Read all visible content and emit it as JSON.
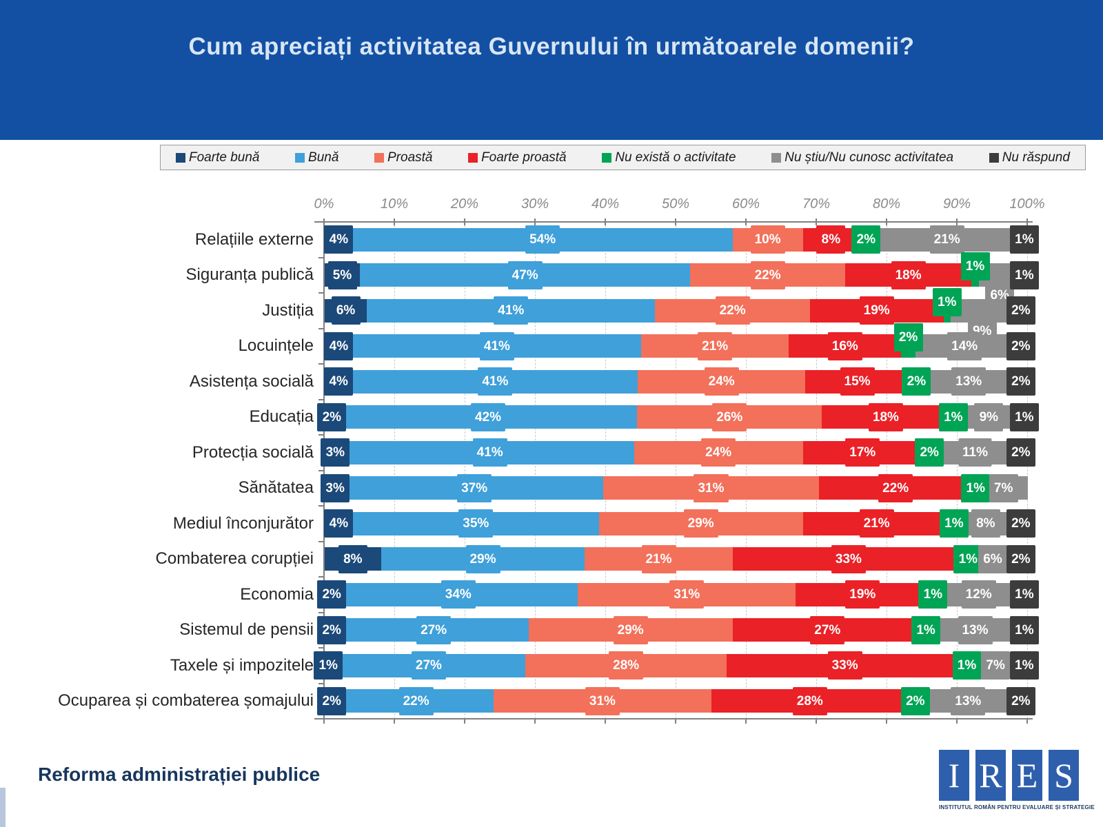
{
  "header": {
    "title": "Cum apreciați activitatea Guvernului în următoarele domenii?"
  },
  "footer": {
    "note": "Reforma administrației publice",
    "logo": {
      "letters": [
        "I",
        "R",
        "E",
        "S"
      ],
      "caption": "INSTITUTUL ROMÂN PENTRU EVALUARE ȘI STRATEGIE"
    }
  },
  "colors": {
    "header_blue": "#1350A4",
    "title_text": "#D8E6F4",
    "legend_background": "#F1F1F1",
    "axis_gray": "#7F7F7F",
    "footer_navy": "#17365D",
    "logo_blue": "#2E5FAC"
  },
  "chart_data": {
    "type": "bar",
    "variant": "stacked-horizontal-100%",
    "title": "Cum apreciați activitatea Guvernului în următoarele domenii?",
    "legend_position": "top",
    "grid": "vertical-dashed",
    "x_axis": {
      "min": 0,
      "max": 100,
      "ticks": [
        "0%",
        "10%",
        "20%",
        "30%",
        "40%",
        "50%",
        "60%",
        "70%",
        "80%",
        "90%",
        "100%"
      ]
    },
    "series": [
      {
        "name": "Foarte bună",
        "color": "#1B4979"
      },
      {
        "name": "Bună",
        "color": "#3FA0DA"
      },
      {
        "name": "Proastă",
        "color": "#F3705A"
      },
      {
        "name": "Foarte proastă",
        "color": "#EA2127"
      },
      {
        "name": "Nu există o activitate",
        "color": "#00A455"
      },
      {
        "name": "Nu știu/Nu cunosc activitatea",
        "color": "#8E8E8E"
      },
      {
        "name": "Nu răspund",
        "color": "#3C3C3C"
      }
    ],
    "categories": [
      "Relațiile externe",
      "Siguranța publică",
      "Justiția",
      "Locuințele",
      "Asistența socială",
      "Educația",
      "Protecția socială",
      "Sănătatea",
      "Mediul înconjurător",
      "Combaterea corupției",
      "Economia",
      "Sistemul de pensii",
      "Taxele și impozitele",
      "Ocuparea și combaterea șomajului"
    ],
    "rows": [
      {
        "label": "Relațiile externe",
        "values": [
          4,
          54,
          10,
          8,
          2,
          21,
          1
        ],
        "label_positions": [
          "in",
          "in",
          "in",
          "in",
          "in",
          "in",
          "in"
        ]
      },
      {
        "label": "Siguranța publică",
        "values": [
          5,
          47,
          22,
          18,
          1,
          6,
          1
        ],
        "label_positions": [
          "in",
          "in",
          "in",
          "in",
          "above",
          "below",
          "in"
        ]
      },
      {
        "label": "Justiția",
        "values": [
          6,
          41,
          22,
          19,
          1,
          9,
          2
        ],
        "label_positions": [
          "in",
          "in",
          "in",
          "in",
          "above",
          "below",
          "in"
        ]
      },
      {
        "label": "Locuințele",
        "values": [
          4,
          41,
          21,
          16,
          2,
          14,
          2
        ],
        "label_positions": [
          "in",
          "in",
          "in",
          "in",
          "above",
          "in",
          "in"
        ]
      },
      {
        "label": "Asistența socială",
        "values": [
          4,
          41,
          24,
          15,
          2,
          13,
          2
        ],
        "label_positions": [
          "in",
          "in",
          "in",
          "in",
          "in",
          "in",
          "in"
        ]
      },
      {
        "label": "Educația",
        "values": [
          2,
          42,
          26,
          18,
          1,
          9,
          1
        ],
        "label_positions": [
          "in",
          "in",
          "in",
          "in",
          "in",
          "in",
          "in"
        ]
      },
      {
        "label": "Protecția socială",
        "values": [
          3,
          41,
          24,
          17,
          2,
          11,
          2
        ],
        "label_positions": [
          "in",
          "in",
          "in",
          "in",
          "in",
          "in",
          "in"
        ]
      },
      {
        "label": "Sănătatea",
        "values": [
          3,
          37,
          31,
          22,
          1,
          7,
          0
        ],
        "label_positions": [
          "in",
          "in",
          "in",
          "in",
          "in",
          "in",
          "in"
        ]
      },
      {
        "label": "Mediul înconjurător",
        "values": [
          4,
          35,
          29,
          21,
          1,
          8,
          2
        ],
        "label_positions": [
          "in",
          "in",
          "in",
          "in",
          "in",
          "in",
          "in"
        ]
      },
      {
        "label": "Combaterea corupției",
        "values": [
          8,
          29,
          21,
          33,
          1,
          6,
          2
        ],
        "label_positions": [
          "in",
          "in",
          "in",
          "in",
          "in",
          "in",
          "in"
        ]
      },
      {
        "label": "Economia",
        "values": [
          2,
          34,
          31,
          19,
          1,
          12,
          1
        ],
        "label_positions": [
          "in",
          "in",
          "in",
          "in",
          "in",
          "in",
          "in"
        ]
      },
      {
        "label": "Sistemul de pensii",
        "values": [
          2,
          27,
          29,
          27,
          1,
          13,
          1
        ],
        "label_positions": [
          "in",
          "in",
          "in",
          "in",
          "in",
          "in",
          "in"
        ]
      },
      {
        "label": "Taxele și impozitele",
        "values": [
          1,
          27,
          28,
          33,
          1,
          7,
          1
        ],
        "label_positions": [
          "in",
          "in",
          "in",
          "in",
          "in",
          "in",
          "in"
        ]
      },
      {
        "label": "Ocuparea și combaterea șomajului",
        "values": [
          2,
          22,
          31,
          28,
          2,
          13,
          2
        ],
        "label_positions": [
          "in",
          "in",
          "in",
          "in",
          "in",
          "in",
          "in"
        ]
      }
    ]
  }
}
